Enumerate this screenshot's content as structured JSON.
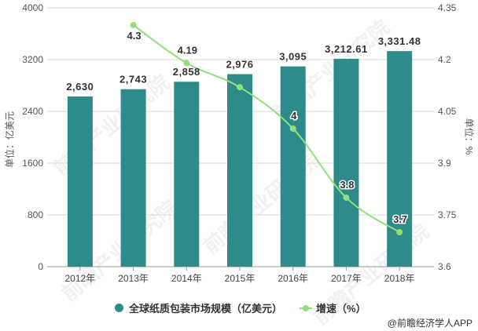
{
  "chart_data": {
    "type": "bar+line",
    "title": "",
    "categories": [
      "2012年",
      "2013年",
      "2014年",
      "2015年",
      "2016年",
      "2017年",
      "2018年"
    ],
    "series": [
      {
        "name": "全球纸质包装市场规模（亿美元）",
        "type": "bar",
        "axis": "left",
        "color": "#2e8b89",
        "values": [
          2630,
          2743,
          2858,
          2976,
          3095,
          3212.61,
          3331.48
        ],
        "labels": [
          "2,630",
          "2,743",
          "2,858",
          "2,976",
          "3,095",
          "3,212.61",
          "3,331.48"
        ]
      },
      {
        "name": "增速（%）",
        "type": "line",
        "axis": "right",
        "color": "#8fe07a",
        "values": [
          null,
          4.3,
          4.19,
          4.12,
          4.0,
          3.8,
          3.7
        ],
        "labels": [
          null,
          "4.3",
          "4.19",
          null,
          "4",
          "3.8",
          "3.7"
        ]
      }
    ],
    "ylabel": "单位：亿美元",
    "ylim": [
      0,
      4000
    ],
    "yticks": [
      0,
      800,
      1600,
      2400,
      3200,
      4000
    ],
    "y2label": "单位：%",
    "y2lim": [
      3.6,
      4.35
    ],
    "y2ticks": [
      "3.6",
      "3.75",
      "3.9",
      "4.05",
      "4.2",
      "4.35"
    ],
    "grid": true,
    "legend_position": "bottom"
  },
  "legend": {
    "items": [
      {
        "label": "全球纸质包装市场规模（亿美元）",
        "color": "#2e8b89",
        "shape": "circle"
      },
      {
        "label": "增速（%）",
        "color": "#8fe07a",
        "shape": "line-marker"
      }
    ]
  },
  "source": "@前瞻经济学人APP",
  "watermark": "前瞻产业研究院"
}
